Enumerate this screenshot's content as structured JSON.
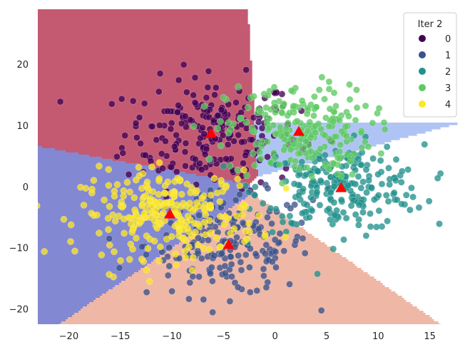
{
  "chart_data": {
    "type": "scatter",
    "title": "",
    "xlabel": "",
    "ylabel": "",
    "xlim": [
      -23,
      18
    ],
    "ylim": [
      -22.5,
      29
    ],
    "xticks": [
      -20,
      -15,
      -10,
      -5,
      0,
      5,
      10,
      15
    ],
    "yticks": [
      -20,
      -10,
      0,
      10,
      20
    ],
    "grid": false,
    "legend": {
      "title": "Iter 2",
      "placement": "top-right",
      "entries": [
        "0",
        "1",
        "2",
        "3",
        "4"
      ]
    },
    "clusters": [
      {
        "name": "0",
        "color": "#440154",
        "region_color": "#c45a72",
        "centroid": [
          -6.2,
          8.7
        ],
        "spread": [
          4.2,
          4.5
        ],
        "count": 230
      },
      {
        "name": "1",
        "color": "#3b528b",
        "region_color": "#efb7a5",
        "centroid": [
          -4.5,
          -9.5
        ],
        "spread": [
          4.0,
          4.2
        ],
        "count": 200
      },
      {
        "name": "2",
        "color": "#21918c",
        "region_color": "#dedde3",
        "centroid": [
          6.4,
          -0.2
        ],
        "spread": [
          4.0,
          3.5
        ],
        "count": 240
      },
      {
        "name": "3",
        "color": "#5ec962",
        "region_color": "#afc4f5",
        "centroid": [
          2.3,
          9.0
        ],
        "spread": [
          3.5,
          3.8
        ],
        "count": 230
      },
      {
        "name": "4",
        "color": "#fde725",
        "region_color": "#8388d3",
        "centroid": [
          -10.2,
          -4.5
        ],
        "spread": [
          4.3,
          3.5
        ],
        "count": 260
      }
    ],
    "centroid_marker": {
      "shape": "triangle",
      "color": "#ff0000"
    }
  }
}
